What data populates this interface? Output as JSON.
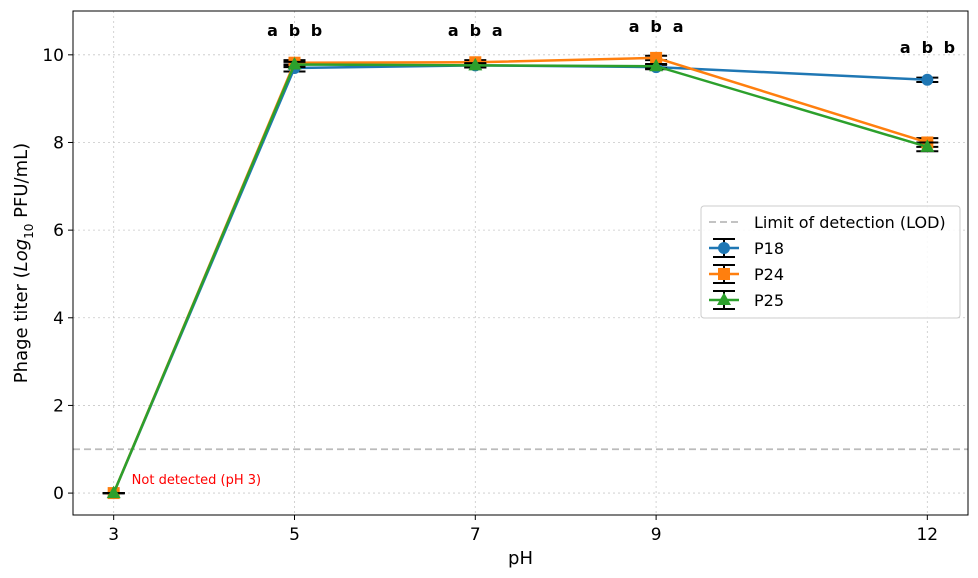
{
  "chart_data": {
    "type": "line",
    "xlabel": "pH",
    "ylabel_prefix": "Phage titer (",
    "ylabel_italic": "Log",
    "ylabel_sub": "10",
    "ylabel_suffix": " PFU/mL)",
    "x": [
      3,
      5,
      7,
      9,
      12
    ],
    "x_ticks": [
      "3",
      "5",
      "7",
      "9",
      "12"
    ],
    "y_ticks": [
      "0",
      "2",
      "4",
      "6",
      "8",
      "10"
    ],
    "ylim": [
      -0.5,
      11.0
    ],
    "xlim": [
      2.55,
      12.45
    ],
    "grid": true,
    "lod": {
      "label": "Limit of detection (LOD)",
      "value": 1.0,
      "color": "#bbbbbb"
    },
    "series": [
      {
        "name": "P18",
        "color": "#1f77b4",
        "marker": "circle",
        "values": [
          0,
          9.7,
          9.76,
          9.72,
          9.43
        ],
        "errors": [
          0,
          0.08,
          0.05,
          0.05,
          0.05
        ]
      },
      {
        "name": "P24",
        "color": "#ff7f0e",
        "marker": "square",
        "values": [
          0,
          9.82,
          9.83,
          9.93,
          8.0
        ],
        "errors": [
          0,
          0.06,
          0.05,
          0.05,
          0.1
        ]
      },
      {
        "name": "P25",
        "color": "#2ca02c",
        "marker": "triangle",
        "values": [
          0,
          9.78,
          9.76,
          9.74,
          7.9
        ],
        "errors": [
          0,
          0.06,
          0.05,
          0.05,
          0.1
        ]
      }
    ],
    "significance": [
      {
        "x": 5,
        "letters": [
          "a",
          "b",
          "b"
        ]
      },
      {
        "x": 7,
        "letters": [
          "a",
          "b",
          "a"
        ]
      },
      {
        "x": 9,
        "letters": [
          "a",
          "b",
          "a"
        ]
      },
      {
        "x": 12,
        "letters": [
          "a",
          "b",
          "b"
        ]
      }
    ],
    "annotation": {
      "text": "Not detected (pH 3)",
      "x": 3,
      "y": 0,
      "color": "#ff0000"
    },
    "legend_position": "center-right"
  }
}
